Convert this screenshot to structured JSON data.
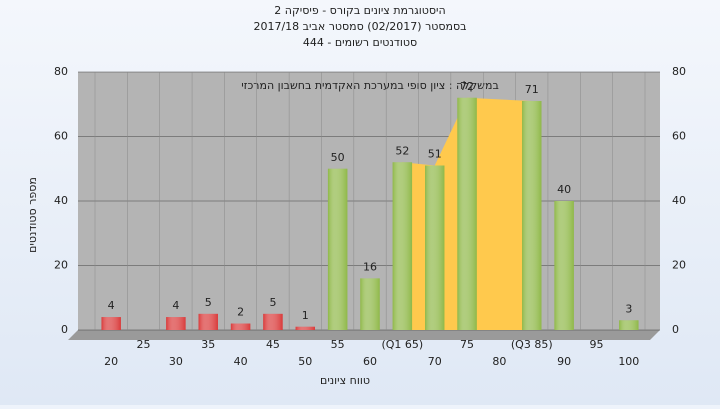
{
  "chart_data": {
    "type": "bar",
    "title": "היסטוגרמת ציונים בקורס - פיסיקה 2",
    "subtitle": [
      "בסמסטר  (02/2017)  סמסטר אביב 2017/18",
      "סטודנטים רשומים - 444"
    ],
    "annotation": "במשקלה : ציון סופי במערכת האקדמית בחשבון המרכזי",
    "x_label": "טווח ציונים",
    "y_label": "מספר סטודנטים",
    "categories": [
      "20",
      "25",
      "30",
      "35",
      "40",
      "45",
      "50",
      "55",
      "60",
      "(Q1 65)",
      "70",
      "75",
      "80",
      "(Q3 85)",
      "90",
      "95",
      "100"
    ],
    "values": [
      4,
      null,
      4,
      5,
      2,
      5,
      1,
      50,
      16,
      52,
      51,
      72,
      null,
      71,
      40,
      null,
      3
    ],
    "colors": [
      "#d93a3a",
      null,
      "#d93a3a",
      "#d93a3a",
      "#d93a3a",
      "#d93a3a",
      "#d93a3a",
      "#8fb848",
      "#8fb848",
      "#8fb848",
      "#8fb848",
      "#8fb848",
      null,
      "#8fb848",
      "#8fb848",
      null,
      "#8fb848"
    ],
    "quartile_color": "#ffc94d",
    "ylim": [
      0,
      80
    ],
    "yticks": [
      0,
      20,
      40,
      60,
      80
    ],
    "y2lim": [
      0,
      80
    ],
    "y2ticks": [
      0,
      20,
      40,
      60,
      80
    ],
    "grid": true
  }
}
